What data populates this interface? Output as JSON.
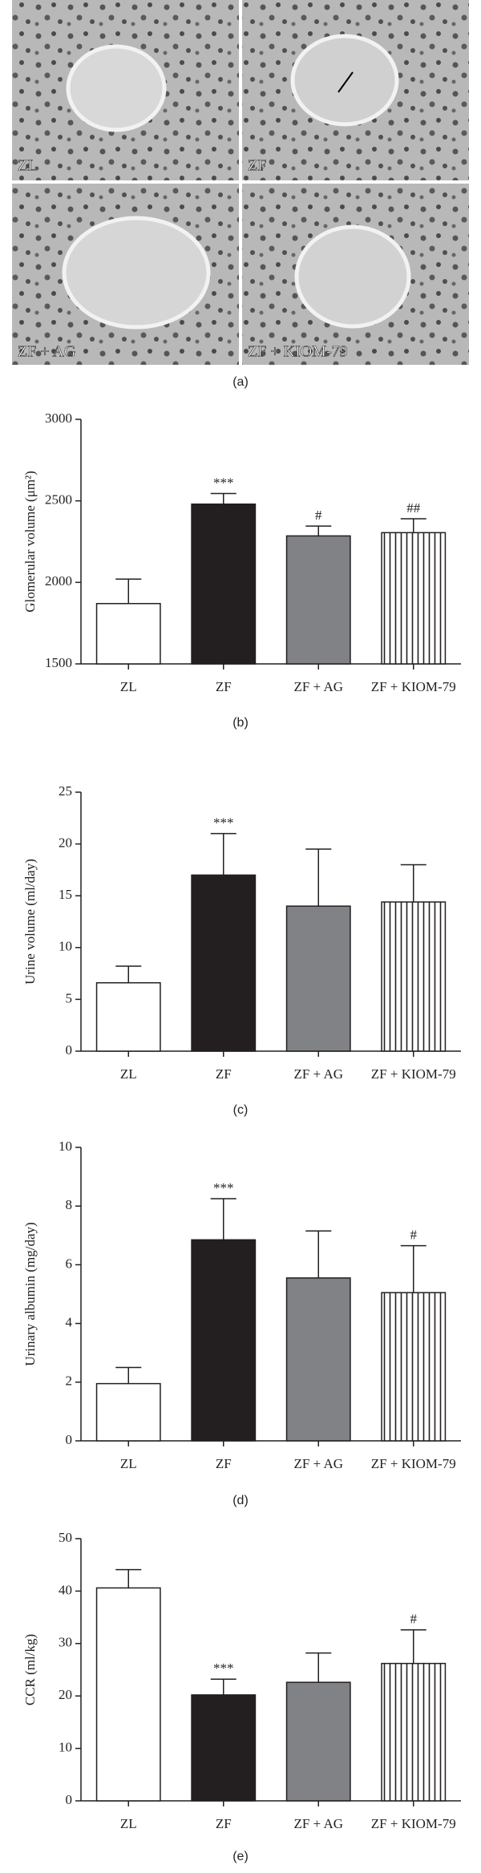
{
  "image_panel": {
    "labels": [
      "ZL",
      "ZF",
      "ZF + AG",
      "ZF + KIOM-79"
    ],
    "caption": "(a)"
  },
  "chart_data": [
    {
      "type": "bar",
      "caption": "(b)",
      "y_label": "Glomerular volume (μm²)",
      "categories": [
        "ZL",
        "ZF",
        "ZF + AG",
        "ZF + KIOM-79"
      ],
      "values": [
        1870,
        2480,
        2285,
        2305
      ],
      "errors": [
        150,
        65,
        60,
        85
      ],
      "annotations": [
        null,
        "***",
        "#",
        "##"
      ],
      "bar_fills": [
        "#ffffff",
        "#231f20",
        "#808285",
        "vertical-stripes"
      ],
      "ylim": [
        1500,
        3000
      ],
      "yticks": [
        1500,
        2000,
        2500,
        3000
      ]
    },
    {
      "type": "bar",
      "caption": "(c)",
      "y_label": "Urine volume (ml/day)",
      "categories": [
        "ZL",
        "ZF",
        "ZF + AG",
        "ZF + KIOM-79"
      ],
      "values": [
        6.6,
        17,
        14,
        14.4
      ],
      "errors": [
        1.6,
        4,
        5.5,
        3.6
      ],
      "annotations": [
        null,
        "***",
        null,
        null
      ],
      "bar_fills": [
        "#ffffff",
        "#231f20",
        "#808285",
        "vertical-stripes"
      ],
      "ylim": [
        0,
        25
      ],
      "yticks": [
        0,
        5,
        10,
        15,
        20,
        25
      ]
    },
    {
      "type": "bar",
      "caption": "(d)",
      "y_label": "Urinary albumin (mg/day)",
      "categories": [
        "ZL",
        "ZF",
        "ZF + AG",
        "ZF + KIOM-79"
      ],
      "values": [
        1.95,
        6.85,
        5.55,
        5.05
      ],
      "errors": [
        0.55,
        1.4,
        1.6,
        1.6
      ],
      "annotations": [
        null,
        "***",
        null,
        "#"
      ],
      "bar_fills": [
        "#ffffff",
        "#231f20",
        "#808285",
        "vertical-stripes"
      ],
      "ylim": [
        0,
        10
      ],
      "yticks": [
        0,
        2,
        4,
        6,
        8,
        10
      ]
    },
    {
      "type": "bar",
      "caption": "(e)",
      "y_label": "CCR (ml/kg)",
      "categories": [
        "ZL",
        "ZF",
        "ZF + AG",
        "ZF + KIOM-79"
      ],
      "values": [
        40.6,
        20.2,
        22.6,
        26.2
      ],
      "errors": [
        3.5,
        3,
        5.6,
        6.4
      ],
      "annotations": [
        null,
        "***",
        null,
        "#"
      ],
      "bar_fills": [
        "#ffffff",
        "#231f20",
        "#808285",
        "vertical-stripes"
      ],
      "ylim": [
        0,
        50
      ],
      "yticks": [
        0,
        10,
        20,
        30,
        40,
        50
      ]
    }
  ]
}
